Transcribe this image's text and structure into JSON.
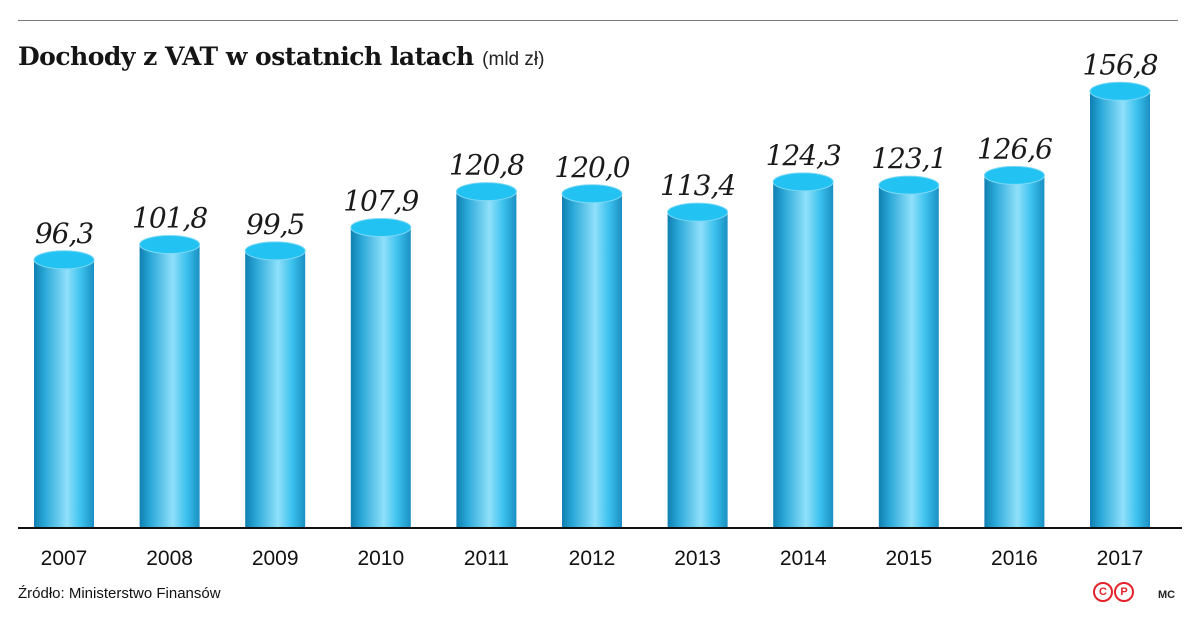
{
  "header": {
    "title": "Dochody z VAT w ostatnich latach",
    "unit": "(mld zł)"
  },
  "footer": {
    "source": "Źródło: Ministerstwo Finansów",
    "logo_letters": [
      "C",
      "P"
    ],
    "author": "MC"
  },
  "colors": {
    "bar_dark": "#0f7fb0",
    "bar_mid": "#3cc1ee",
    "bar_light": "#8fe0fa",
    "bar_top": "#22c3f2",
    "logo_red": "#e3222b"
  },
  "chart_data": {
    "type": "bar",
    "title": "Dochody z VAT w ostatnich latach",
    "unit": "(mld zł)",
    "categories": [
      "2007",
      "2008",
      "2009",
      "2010",
      "2011",
      "2012",
      "2013",
      "2014",
      "2015",
      "2016",
      "2017"
    ],
    "values": [
      96.3,
      101.8,
      99.5,
      107.9,
      120.8,
      120.0,
      113.4,
      124.3,
      123.1,
      126.6,
      156.8
    ],
    "value_labels": [
      "96,3",
      "101,8",
      "99,5",
      "107,9",
      "120,8",
      "120,0",
      "113,4",
      "124,3",
      "123,1",
      "126,6",
      "156,8"
    ],
    "xlabel": "",
    "ylabel": "",
    "grid": false,
    "legend": "none"
  }
}
